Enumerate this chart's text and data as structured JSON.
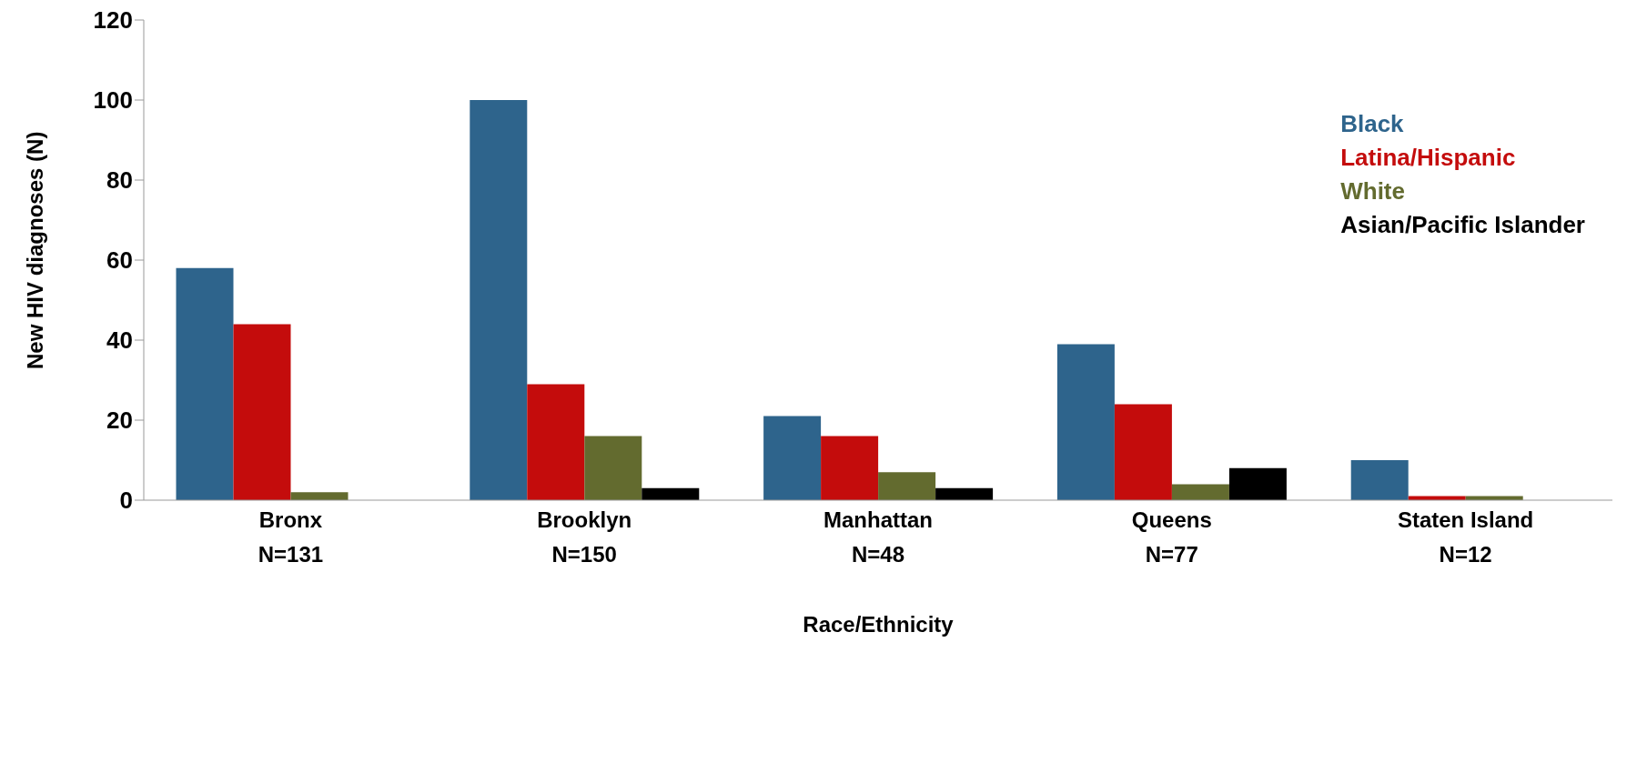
{
  "chart_data": {
    "type": "bar",
    "xlabel": "Race/Ethnicity",
    "ylabel": "New HIV diagnoses (N)",
    "categories": [
      "Bronx\nN=131",
      "Brooklyn\nN=150",
      "Manhattan\nN=48",
      "Queens\nN=77",
      "Staten Island\nN=12"
    ],
    "series": [
      {
        "name": "Black",
        "color": "#2e648c",
        "values": [
          58,
          100,
          21,
          39,
          10
        ]
      },
      {
        "name": "Latina/Hispanic",
        "color": "#c40c0c",
        "values": [
          44,
          29,
          16,
          24,
          1
        ]
      },
      {
        "name": "White",
        "color": "#636b2f",
        "values": [
          2,
          16,
          7,
          4,
          1
        ]
      },
      {
        "name": "Asian/Pacific Islander",
        "color": "#000000",
        "values": [
          0,
          3,
          3,
          8,
          0
        ]
      }
    ],
    "ylim": [
      0,
      120
    ],
    "yticks": [
      0,
      20,
      40,
      60,
      80,
      100,
      120
    ],
    "grid": false,
    "legend": "top right"
  }
}
